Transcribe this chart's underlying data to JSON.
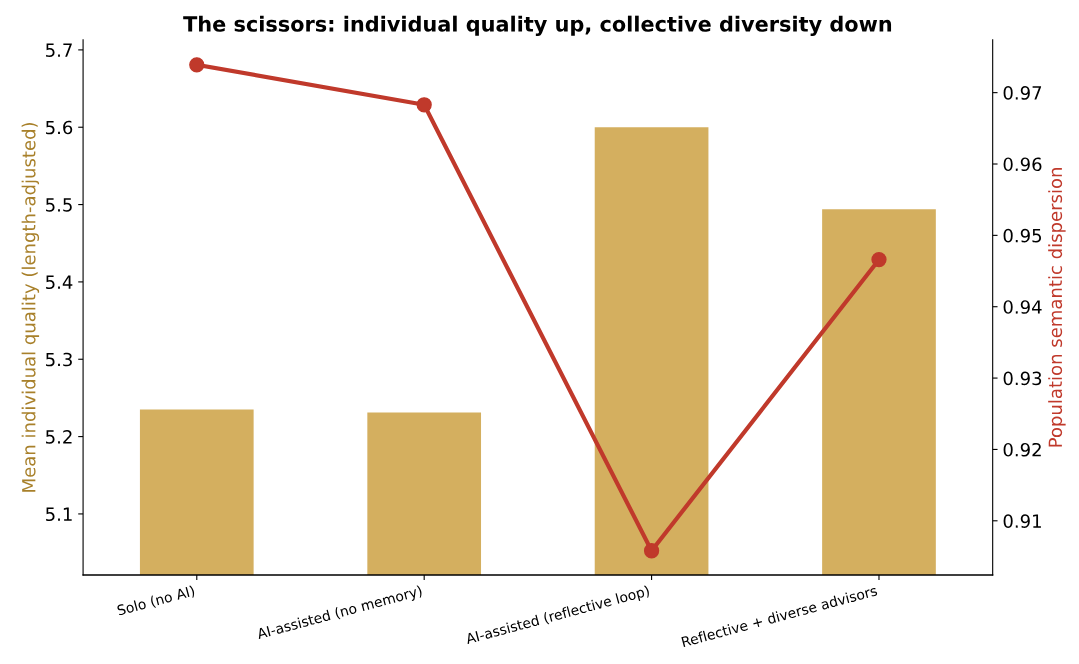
{
  "chart_data": {
    "type": "bar",
    "title": "The scissors: individual quality up, collective diversity down",
    "categories": [
      "Solo (no AI)",
      "AI-assisted (no memory)",
      "AI-assisted (reflective loop)",
      "Reflective + diverse advisors"
    ],
    "series": [
      {
        "color": "#d4af5f",
        "values": [
          5.235,
          5.231,
          5.6,
          5.494
        ]
      },
      {
        "type": "line",
        "axis": "y2",
        "color": "#c0392b",
        "values": [
          0.9739,
          0.9683,
          0.9058,
          0.9466
        ],
        "marker": "circle"
      }
    ],
    "ylabel": "Mean individual quality (length-adjusted)",
    "y2label": "Population semantic dispersion",
    "ylim": [
      5.021,
      5.713
    ],
    "yticks": [
      5.1,
      5.2,
      5.3,
      5.4,
      5.5,
      5.6,
      5.7
    ],
    "y2lim": [
      0.9024,
      0.9774
    ],
    "y2ticks": [
      0.91,
      0.92,
      0.93,
      0.94,
      0.95,
      0.96,
      0.97
    ],
    "grid": false,
    "legend": false
  }
}
